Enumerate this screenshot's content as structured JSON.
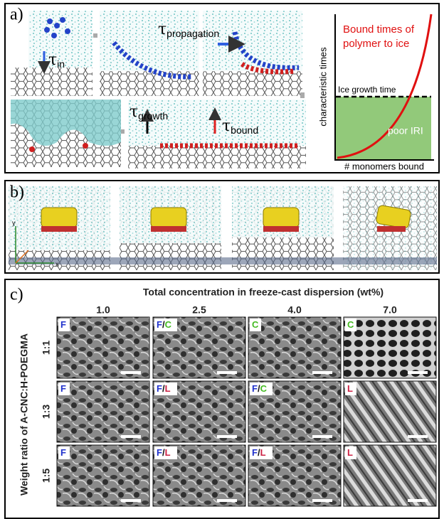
{
  "panel_a": {
    "label": "a)",
    "tau_in": {
      "symbol": "τ",
      "subscript": "in"
    },
    "tau_propagation": {
      "symbol": "τ",
      "subscript": "propagation"
    },
    "tau_growth": {
      "symbol": "τ",
      "subscript": "growth"
    },
    "tau_bound": {
      "symbol": "τ",
      "subscript": "bound"
    },
    "schematic": {
      "y_label": "characteristic times",
      "x_label": "# monomers bound",
      "curve_label": [
        "Bound times of",
        "polymer to ice"
      ],
      "line_label": "Ice growth time",
      "region_label": "poor IRI"
    }
  },
  "panel_b": {
    "label": "b)",
    "axis_y": "y",
    "axis_x": "x"
  },
  "panel_c": {
    "label": "c)",
    "title": "Total concentration in freeze-cast dispersion (wt%)",
    "y_label": "Weight ratio of A-CNC:H-POEGMA",
    "columns": [
      "1.0",
      "2.5",
      "4.0",
      "7.0"
    ],
    "rows": [
      "1:1",
      "1:3",
      "1:5"
    ],
    "cells": [
      [
        "F",
        "F/C",
        "C",
        "C"
      ],
      [
        "F",
        "F/L",
        "F/C",
        "L"
      ],
      [
        "F",
        "F/L",
        "F/L",
        "L"
      ]
    ]
  }
}
